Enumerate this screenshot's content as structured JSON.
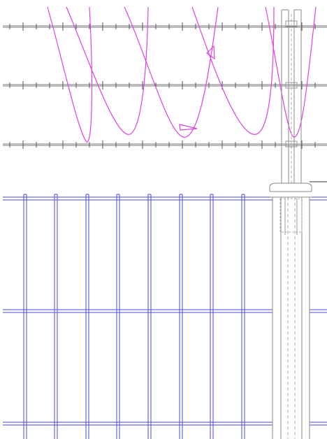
{
  "drawing": {
    "background": "#ffffff",
    "colors": {
      "barbed_wire": "#7a7a7a",
      "barb": "#555555",
      "razor_wire": "#e040e0",
      "mesh_panel": "#4a4ad8",
      "post": "#8a8a8a",
      "post_hidden_line": "#b0b0b0"
    },
    "visible_text": []
  }
}
